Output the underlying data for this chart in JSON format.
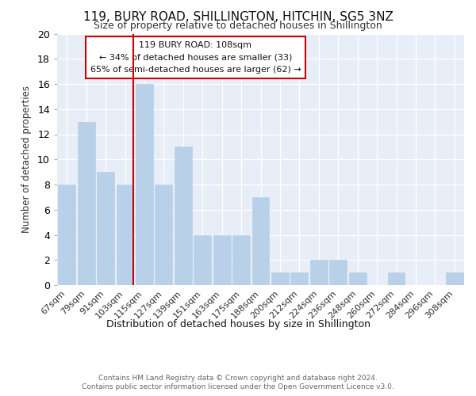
{
  "title": "119, BURY ROAD, SHILLINGTON, HITCHIN, SG5 3NZ",
  "subtitle": "Size of property relative to detached houses in Shillington",
  "xlabel": "Distribution of detached houses by size in Shillington",
  "ylabel": "Number of detached properties",
  "categories": [
    "67sqm",
    "79sqm",
    "91sqm",
    "103sqm",
    "115sqm",
    "127sqm",
    "139sqm",
    "151sqm",
    "163sqm",
    "175sqm",
    "188sqm",
    "200sqm",
    "212sqm",
    "224sqm",
    "236sqm",
    "248sqm",
    "260sqm",
    "272sqm",
    "284sqm",
    "296sqm",
    "308sqm"
  ],
  "values": [
    8,
    13,
    9,
    8,
    16,
    8,
    11,
    4,
    4,
    4,
    7,
    1,
    1,
    2,
    2,
    1,
    0,
    1,
    0,
    0,
    1
  ],
  "bar_color": "#b8d0e8",
  "bar_edgecolor": "#b8d0e8",
  "ref_line_label": "119 BURY ROAD: 108sqm",
  "annotation_line1": "← 34% of detached houses are smaller (33)",
  "annotation_line2": "65% of semi-detached houses are larger (62) →",
  "ref_line_color": "#cc0000",
  "box_edgecolor": "#cc0000",
  "ylim": [
    0,
    20
  ],
  "yticks": [
    0,
    2,
    4,
    6,
    8,
    10,
    12,
    14,
    16,
    18,
    20
  ],
  "plot_bg": "#e8eef8",
  "fig_bg": "#ffffff",
  "grid_color": "#ffffff",
  "footer1": "Contains HM Land Registry data © Crown copyright and database right 2024.",
  "footer2": "Contains public sector information licensed under the Open Government Licence v3.0."
}
